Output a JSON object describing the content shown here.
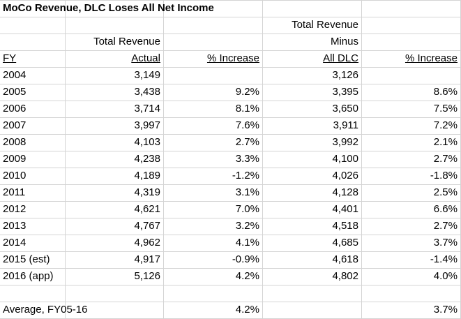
{
  "title": "MoCo Revenue, DLC Loses All Net Income",
  "headers": {
    "line1_col4": "Total Revenue",
    "line2_col2": "Total Revenue",
    "line2_col4": "Minus",
    "fy": "FY",
    "actual": "Actual",
    "pct1": "% Increase",
    "all_dlc": "All DLC",
    "pct2": "% Increase"
  },
  "rows": [
    {
      "fy": "2004",
      "actual": "3,149",
      "pct1": "",
      "minus": "3,126",
      "pct2": ""
    },
    {
      "fy": "2005",
      "actual": "3,438",
      "pct1": "9.2%",
      "minus": "3,395",
      "pct2": "8.6%"
    },
    {
      "fy": "2006",
      "actual": "3,714",
      "pct1": "8.1%",
      "minus": "3,650",
      "pct2": "7.5%"
    },
    {
      "fy": "2007",
      "actual": "3,997",
      "pct1": "7.6%",
      "minus": "3,911",
      "pct2": "7.2%"
    },
    {
      "fy": "2008",
      "actual": "4,103",
      "pct1": "2.7%",
      "minus": "3,992",
      "pct2": "2.1%"
    },
    {
      "fy": "2009",
      "actual": "4,238",
      "pct1": "3.3%",
      "minus": "4,100",
      "pct2": "2.7%"
    },
    {
      "fy": "2010",
      "actual": "4,189",
      "pct1": "-1.2%",
      "minus": "4,026",
      "pct2": "-1.8%"
    },
    {
      "fy": "2011",
      "actual": "4,319",
      "pct1": "3.1%",
      "minus": "4,128",
      "pct2": "2.5%"
    },
    {
      "fy": "2012",
      "actual": "4,621",
      "pct1": "7.0%",
      "minus": "4,401",
      "pct2": "6.6%"
    },
    {
      "fy": "2013",
      "actual": "4,767",
      "pct1": "3.2%",
      "minus": "4,518",
      "pct2": "2.7%"
    },
    {
      "fy": "2014",
      "actual": "4,962",
      "pct1": "4.1%",
      "minus": "4,685",
      "pct2": "3.7%"
    },
    {
      "fy": "2015 (est)",
      "actual": "4,917",
      "pct1": "-0.9%",
      "minus": "4,618",
      "pct2": "-1.4%"
    },
    {
      "fy": "2016 (app)",
      "actual": "5,126",
      "pct1": "4.2%",
      "minus": "4,802",
      "pct2": "4.0%"
    }
  ],
  "average": {
    "label": "Average, FY05-16",
    "pct1": "4.2%",
    "pct2": "3.7%"
  }
}
